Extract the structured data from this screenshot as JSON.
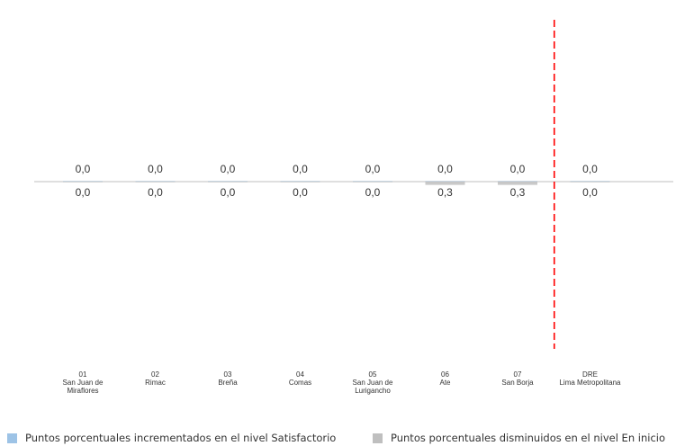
{
  "chart_data": {
    "type": "bar",
    "categories": [
      [
        "01",
        "San Juan de",
        "Miraflores"
      ],
      [
        "02",
        "Rimac"
      ],
      [
        "03",
        "Breña"
      ],
      [
        "04",
        "Comas"
      ],
      [
        "05",
        "San Juan de",
        "Lurigancho"
      ],
      [
        "06",
        "Ate"
      ],
      [
        "07",
        "San Borja"
      ],
      [
        "DRE",
        "Lima Metropolitana"
      ]
    ],
    "series": [
      {
        "name": "Puntos porcentuales incrementados en el nivel Satisfactorio",
        "color": "#9dc3e6",
        "direction": "up",
        "values": [
          0.0,
          0.0,
          0.0,
          0.0,
          0.0,
          0.0,
          0.0,
          0.0
        ],
        "labels": [
          "0,0",
          "0,0",
          "0,0",
          "0,0",
          "0,0",
          "0,0",
          "0,0",
          "0,0"
        ]
      },
      {
        "name": "Puntos porcentuales disminuidos en el nivel En inicio",
        "color": "#bfbfbf",
        "direction": "down",
        "values": [
          0.0,
          0.0,
          0.0,
          0.0,
          0.0,
          0.3,
          0.3,
          0.0
        ],
        "labels": [
          "0,0",
          "0,0",
          "0,0",
          "0,0",
          "0,0",
          "0,3",
          "0,3",
          "0,0"
        ]
      }
    ],
    "separator_after_category": 6,
    "separator_color": "#ff0000",
    "legend_placement": "bottom",
    "grid": false
  }
}
